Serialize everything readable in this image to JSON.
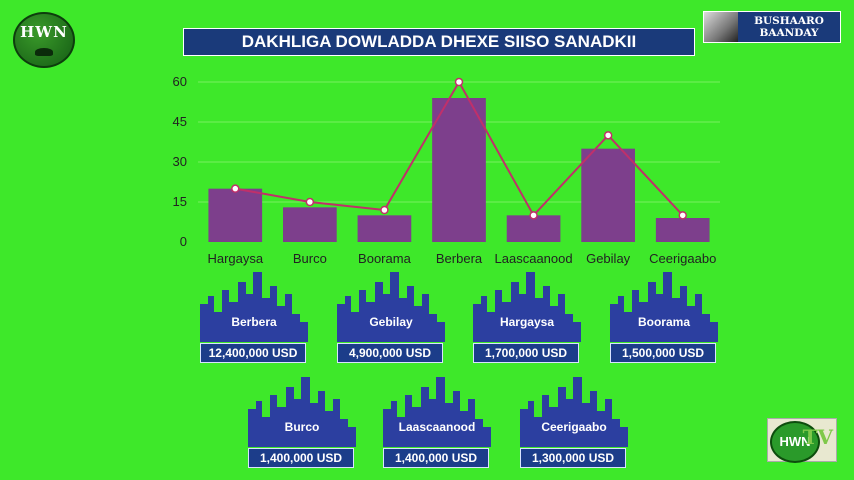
{
  "header": {
    "logo_text": "HWN",
    "title": "DAKHLIGA DOWLADDA DHEXE SIISO SANADKII",
    "badge_line1": "BUSHAARO",
    "badge_line2": "BAANDAY"
  },
  "chart_data": {
    "type": "bar",
    "title": "DAKHLIGA DOWLADDA DHEXE SIISO SANADKII",
    "categories": [
      "Hargaysa",
      "Burco",
      "Boorama",
      "Berbera",
      "Laascaanood",
      "Gebilay",
      "Ceerigaabo"
    ],
    "series": [
      {
        "type": "bar",
        "values": [
          20,
          13,
          10,
          54,
          10,
          35,
          9
        ]
      },
      {
        "type": "line",
        "values": [
          20,
          15,
          12,
          60,
          10,
          40,
          10
        ]
      }
    ],
    "yticks": [
      0,
      15,
      30,
      45,
      60
    ],
    "ylim": [
      0,
      60
    ],
    "grid": true,
    "colors": {
      "bar": "#7d3f8c",
      "line": "#c0306a",
      "marker_fill": "#ffffff",
      "text": "#222222"
    }
  },
  "cities": [
    {
      "name": "Berbera",
      "value": "12,400,000  USD"
    },
    {
      "name": "Gebilay",
      "value": "4,900,000  USD"
    },
    {
      "name": "Hargaysa",
      "value": "1,700,000  USD"
    },
    {
      "name": "Boorama",
      "value": "1,500,000  USD"
    },
    {
      "name": "Burco",
      "value": "1,400,000  USD"
    },
    {
      "name": "Laascaanood",
      "value": "1,400,000  USD"
    },
    {
      "name": "Ceerigaabo",
      "value": "1,300,000  USD"
    }
  ],
  "footer": {
    "logo_text": "HWN",
    "logo_tv": "TV"
  }
}
